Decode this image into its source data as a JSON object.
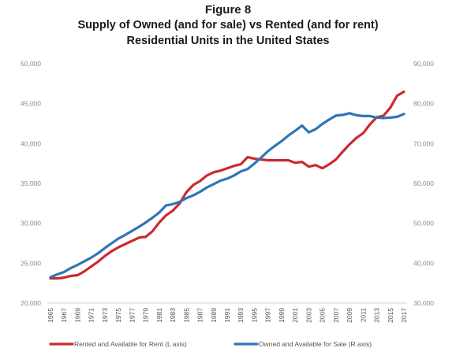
{
  "chart_data": {
    "type": "line",
    "title": "Figure 8",
    "subtitle_lines": [
      "Supply of Owned (and for sale) vs Rented (and for rent)",
      "Residential Units in the United States"
    ],
    "x": [
      1965,
      1966,
      1967,
      1968,
      1969,
      1970,
      1971,
      1972,
      1973,
      1974,
      1975,
      1976,
      1977,
      1978,
      1979,
      1980,
      1981,
      1982,
      1983,
      1984,
      1985,
      1986,
      1987,
      1988,
      1989,
      1990,
      1991,
      1992,
      1993,
      1994,
      1995,
      1996,
      1997,
      1998,
      1999,
      2000,
      2001,
      2002,
      2003,
      2004,
      2005,
      2006,
      2007,
      2008,
      2009,
      2010,
      2011,
      2012,
      2013,
      2014,
      2015,
      2016,
      2017
    ],
    "x_tick_labels": [
      "1965",
      "1967",
      "1969",
      "1971",
      "1973",
      "1975",
      "1977",
      "1979",
      "1981",
      "1983",
      "1985",
      "1987",
      "1989",
      "1991",
      "1993",
      "1995",
      "1997",
      "1999",
      "2001",
      "2003",
      "2005",
      "2007",
      "2009",
      "2011",
      "2013",
      "2015",
      "2017"
    ],
    "left_axis": {
      "ylim": [
        20000,
        50000
      ],
      "ticks": [
        "20,000",
        "25,000",
        "30,000",
        "35,000",
        "40,000",
        "45,000",
        "50,000"
      ],
      "tick_values": [
        20000,
        25000,
        30000,
        35000,
        40000,
        45000,
        50000
      ]
    },
    "right_axis": {
      "ylim": [
        30000,
        90000
      ],
      "ticks": [
        "30,000",
        "40,000",
        "50,000",
        "60,000",
        "70,000",
        "80,000",
        "90,000"
      ],
      "tick_values": [
        30000,
        40000,
        50000,
        60000,
        70000,
        80000,
        90000
      ]
    },
    "series": [
      {
        "name": "Rented and Available for Rent (L axis)",
        "axis": "left",
        "color": "#cc2a2e",
        "values": [
          23100,
          23100,
          23200,
          23400,
          23500,
          24000,
          24600,
          25200,
          25900,
          26500,
          27000,
          27400,
          27800,
          28200,
          28300,
          29000,
          30100,
          31000,
          31600,
          32500,
          33900,
          34800,
          35300,
          36000,
          36400,
          36600,
          36900,
          37200,
          37400,
          38300,
          38100,
          38000,
          37900,
          37900,
          37900,
          37900,
          37600,
          37700,
          37100,
          37300,
          36900,
          37400,
          38000,
          39000,
          39900,
          40700,
          41300,
          42400,
          43300,
          43500,
          44500,
          46000,
          46500
        ]
      },
      {
        "name": "Owned and Available for Sale (R axis)",
        "axis": "right",
        "color": "#2e75b6",
        "values": [
          36500,
          37200,
          37800,
          38800,
          39600,
          40500,
          41400,
          42500,
          43800,
          45000,
          46200,
          47100,
          48100,
          49100,
          50200,
          51400,
          52700,
          54500,
          54800,
          55400,
          56300,
          57000,
          57900,
          59000,
          59800,
          60700,
          61200,
          62000,
          63000,
          63600,
          65000,
          66500,
          68100,
          69400,
          70600,
          72000,
          73200,
          74500,
          72800,
          73600,
          74900,
          76000,
          77000,
          77200,
          77600,
          77100,
          76900,
          76900,
          76500,
          76400,
          76500,
          76700,
          77400
        ]
      }
    ],
    "legend_position": "bottom",
    "grid": false
  }
}
